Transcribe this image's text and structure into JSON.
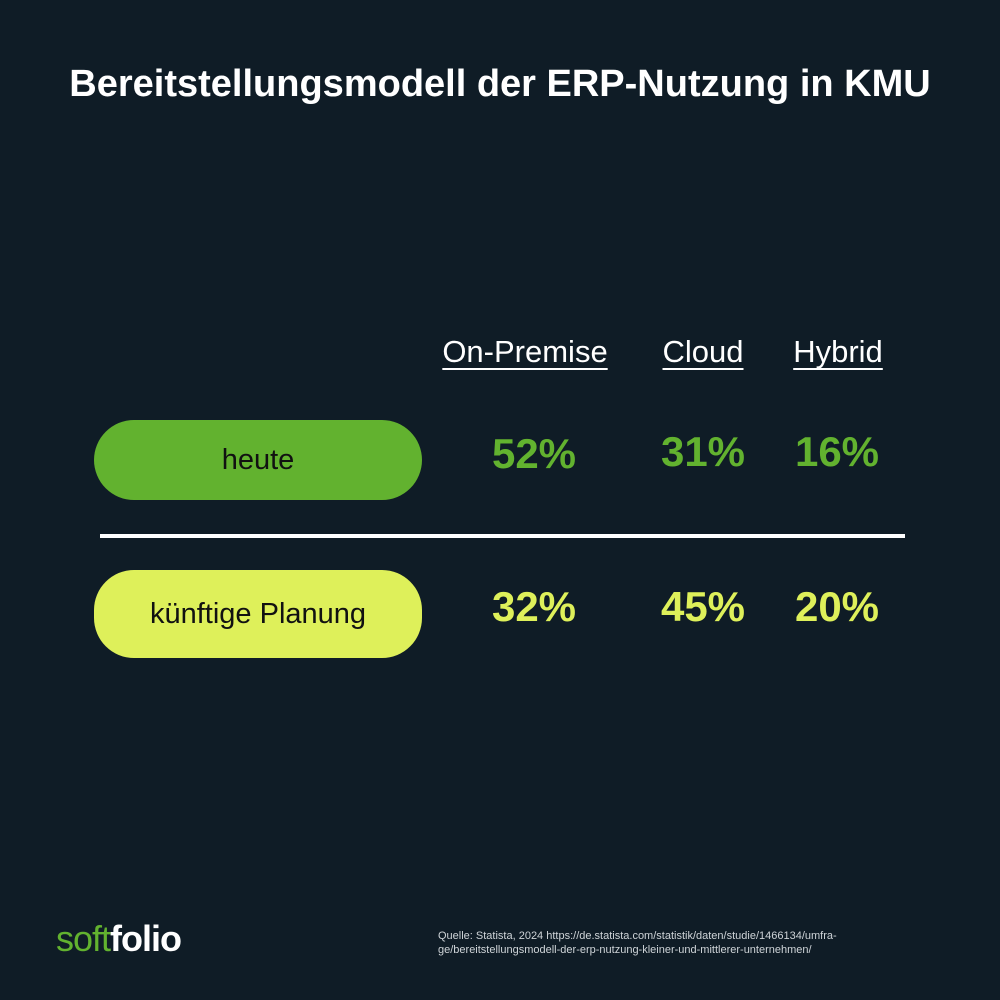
{
  "header": {
    "title": "Bereitstellungsmodell der ERP-Nutzung in KMU"
  },
  "table": {
    "columns": [
      "On-Premise",
      "Cloud",
      "Hybrid"
    ],
    "rows": [
      {
        "label": "heute",
        "cells": [
          "52%",
          "31%",
          "16%"
        ]
      },
      {
        "label": "künftige Planung",
        "cells": [
          "32%",
          "45%",
          "20%"
        ]
      }
    ]
  },
  "footer": {
    "logo": {
      "part1": "soft",
      "part2": "folio"
    },
    "source": [
      "Quelle: Statista, 2024 https://de.statista.com/statistik/daten/studie/1466134/umfra-",
      "ge/bereitstellungsmodell-der-erp-nutzung-kleiner-und-mittlerer-unternehmen/"
    ]
  }
}
